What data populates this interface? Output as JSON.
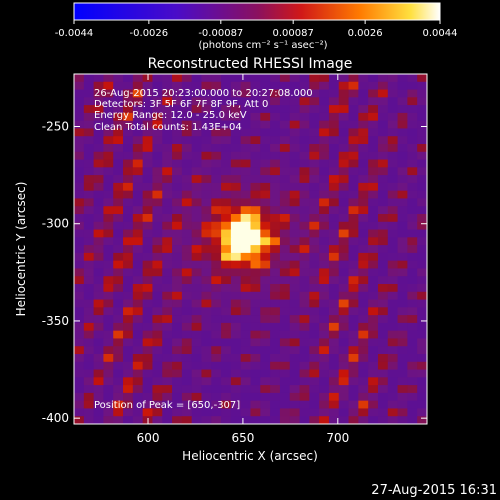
{
  "chart_data": {
    "type": "heatmap",
    "title": "Reconstructed RHESSI Image",
    "colorbar": {
      "tick_labels": [
        "-0.0044",
        "-0.0026",
        "-0.00087",
        "0.00087",
        "0.0026",
        "0.0044"
      ],
      "tick_values": [
        -0.0044,
        -0.0026,
        -0.00087,
        0.00087,
        0.0026,
        0.0044
      ],
      "range": [
        -0.0044,
        0.0044
      ],
      "unit_label": "(photons cm⁻² s⁻¹ asec⁻²)",
      "colors": [
        "#0000ff",
        "#6a0fa0",
        "#c01010",
        "#ff8000",
        "#ffff80",
        "#ffffff"
      ]
    },
    "xlabel": "Heliocentric X (arcsec)",
    "ylabel": "Heliocentric Y (arcsec)",
    "xlim": [
      561,
      747
    ],
    "ylim": [
      -403,
      -223
    ],
    "xticks": [
      600,
      650,
      700
    ],
    "yticks": [
      -250,
      -300,
      -350,
      -400
    ],
    "annotations": {
      "time_range": "26-Aug-2015 20:23:00.000 to 20:27:08.000",
      "detectors": "Detectors: 3F 5F 6F 7F 8F 9F, Att 0",
      "energy": "Energy Range: 12.0 - 25.0 keV",
      "clean": "Clean    Total counts: 1.43E+04",
      "peak": "Position of Peak = [650,-307]"
    },
    "peak": {
      "x": 650,
      "y": -307
    },
    "timestamp": "27-Aug-2015 16:31"
  }
}
